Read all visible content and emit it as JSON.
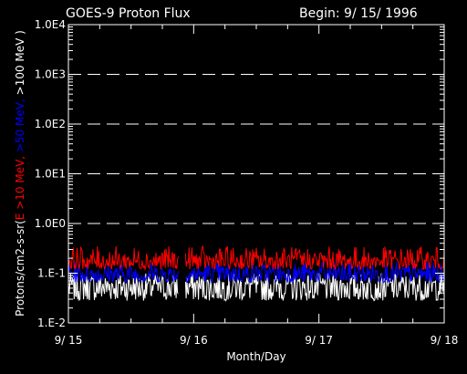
{
  "chart_data": {
    "type": "line",
    "title": "GOES-9 Proton Flux",
    "begin_label": "Begin: 9/ 15/ 1996",
    "xlabel": "Month/Day",
    "ylabel_parts": [
      {
        "text": "Protons/cm2-s-sr(",
        "color": "#ffffff"
      },
      {
        "text": "E >10 MeV, ",
        "color": "#ff0000"
      },
      {
        "text": ">50 MeV, ",
        "color": "#0000ff"
      },
      {
        "text": ">100 MeV )",
        "color": "#ffffff"
      }
    ],
    "yscale": "log",
    "ylim": [
      0.01,
      10000
    ],
    "xlim": [
      0,
      3
    ],
    "yticks": [
      {
        "value": 0.01,
        "label": "1.E-2"
      },
      {
        "value": 0.1,
        "label": "1.E-1"
      },
      {
        "value": 1,
        "label": "1.0E0"
      },
      {
        "value": 10,
        "label": "1.0E1"
      },
      {
        "value": 100,
        "label": "1.0E2"
      },
      {
        "value": 1000,
        "label": "1.0E3"
      },
      {
        "value": 10000,
        "label": "1.0E4"
      }
    ],
    "xticks": [
      {
        "value": 0,
        "label": "9/ 15"
      },
      {
        "value": 1,
        "label": "9/ 16"
      },
      {
        "value": 2,
        "label": "9/ 17"
      },
      {
        "value": 3,
        "label": "9/ 18"
      }
    ],
    "threshold_lines": [
      1,
      10,
      100,
      1000
    ],
    "data_gap": [
      0.88,
      0.93
    ],
    "series": [
      {
        "name": ">100 MeV",
        "color": "#ffffff",
        "base": 0.06,
        "low": 0.028,
        "high": 0.1
      },
      {
        "name": ">50 MeV",
        "color": "#0000ff",
        "base": 0.1,
        "low": 0.065,
        "high": 0.17
      },
      {
        "name": ">10 MeV",
        "color": "#ff0000",
        "base": 0.18,
        "low": 0.12,
        "high": 0.35
      }
    ]
  }
}
